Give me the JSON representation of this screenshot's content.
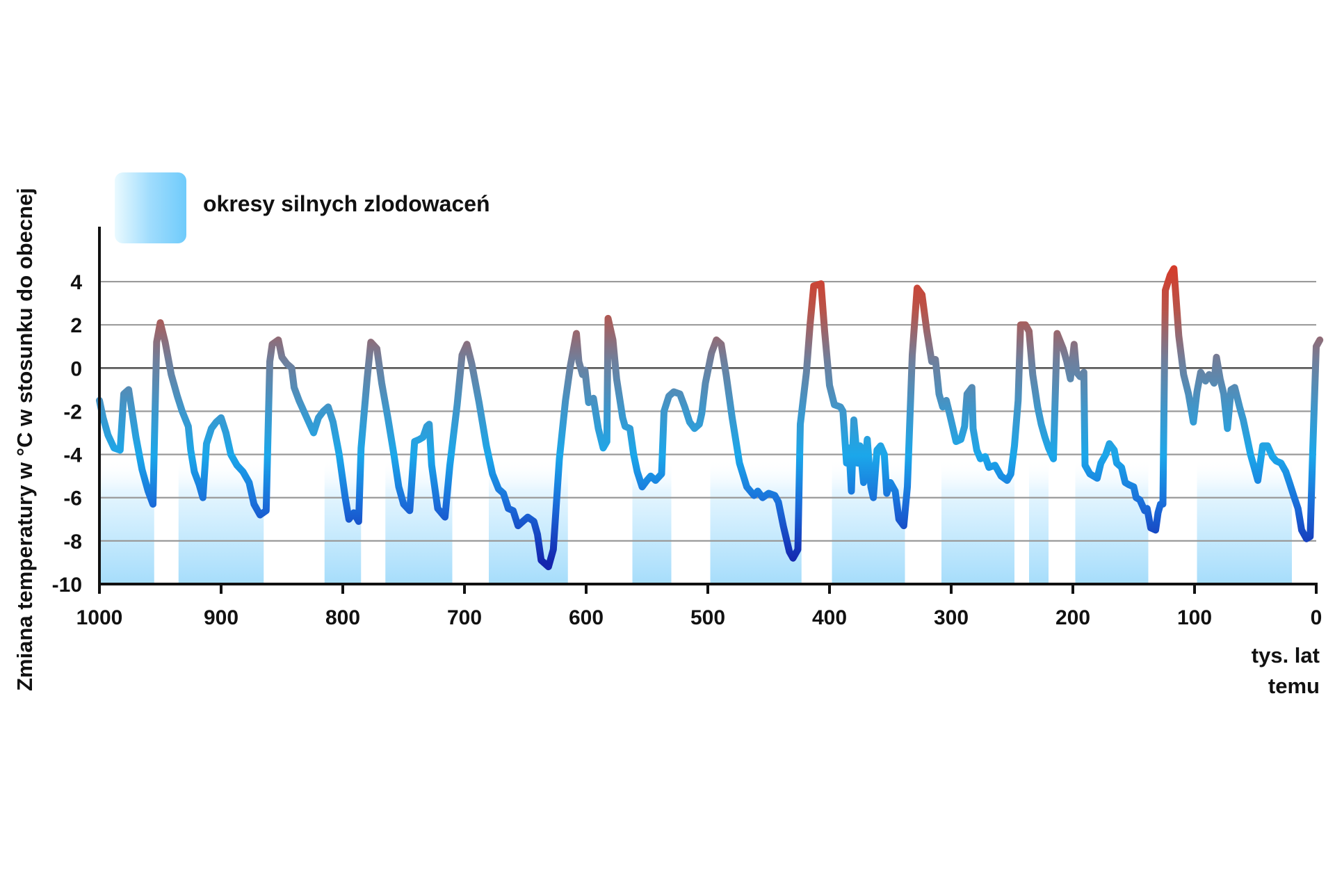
{
  "chart_data": {
    "type": "line",
    "title": "",
    "xlabel": "tys. lat temu",
    "xlabel_lines": [
      "tys. lat",
      "temu"
    ],
    "ylabel": "Zmiana temperatury w °C w stosunku do obecnej",
    "x_reversed": true,
    "xlim": [
      1000,
      0
    ],
    "ylim": [
      -10,
      5
    ],
    "x_ticks": [
      1000,
      900,
      800,
      700,
      600,
      500,
      400,
      300,
      200,
      100,
      0
    ],
    "y_ticks": [
      4,
      2,
      0,
      -2,
      -4,
      -6,
      -8,
      -10
    ],
    "grid": "horizontal",
    "legend": [
      {
        "label": "okresy silnych zlodowaceń",
        "swatch": "glaciation-band",
        "position": "top-left"
      }
    ],
    "glacial_periods": [
      [
        1000,
        955
      ],
      [
        935,
        865
      ],
      [
        815,
        785
      ],
      [
        765,
        710
      ],
      [
        680,
        615
      ],
      [
        562,
        530
      ],
      [
        498,
        423
      ],
      [
        398,
        338
      ],
      [
        308,
        248
      ],
      [
        236,
        220
      ],
      [
        198,
        138
      ],
      [
        98,
        20
      ]
    ],
    "series": [
      {
        "points": [
          [
            1000,
            -1.5
          ],
          [
            997,
            -2.3
          ],
          [
            993,
            -3.1
          ],
          [
            988,
            -3.7
          ],
          [
            983,
            -3.8
          ],
          [
            980,
            -1.2
          ],
          [
            976,
            -1.0
          ],
          [
            970,
            -3.2
          ],
          [
            965,
            -4.7
          ],
          [
            960,
            -5.7
          ],
          [
            956,
            -6.3
          ],
          [
            953,
            1.2
          ],
          [
            950,
            2.1
          ],
          [
            946,
            1.2
          ],
          [
            941,
            -0.3
          ],
          [
            936,
            -1.3
          ],
          [
            932,
            -2.0
          ],
          [
            927,
            -2.7
          ],
          [
            925,
            -3.8
          ],
          [
            922,
            -4.8
          ],
          [
            918,
            -5.4
          ],
          [
            915,
            -6.0
          ],
          [
            912,
            -3.5
          ],
          [
            908,
            -2.8
          ],
          [
            904,
            -2.5
          ],
          [
            900,
            -2.3
          ],
          [
            896,
            -3.0
          ],
          [
            892,
            -4.0
          ],
          [
            887,
            -4.5
          ],
          [
            882,
            -4.8
          ],
          [
            877,
            -5.3
          ],
          [
            873,
            -6.3
          ],
          [
            868,
            -6.8
          ],
          [
            863,
            -6.6
          ],
          [
            860,
            0.3
          ],
          [
            858,
            1.1
          ],
          [
            853,
            1.3
          ],
          [
            850,
            0.5
          ],
          [
            846,
            0.2
          ],
          [
            842,
            0.0
          ],
          [
            840,
            -0.9
          ],
          [
            836,
            -1.5
          ],
          [
            832,
            -2.0
          ],
          [
            828,
            -2.5
          ],
          [
            824,
            -3.0
          ],
          [
            820,
            -2.3
          ],
          [
            816,
            -2.0
          ],
          [
            812,
            -1.8
          ],
          [
            808,
            -2.5
          ],
          [
            803,
            -4.0
          ],
          [
            798,
            -6.0
          ],
          [
            795,
            -7.0
          ],
          [
            791,
            -6.7
          ],
          [
            787,
            -7.1
          ],
          [
            785,
            -3.7
          ],
          [
            780,
            -0.5
          ],
          [
            777,
            1.2
          ],
          [
            772,
            0.9
          ],
          [
            768,
            -0.7
          ],
          [
            763,
            -2.3
          ],
          [
            758,
            -4.0
          ],
          [
            754,
            -5.5
          ],
          [
            750,
            -6.3
          ],
          [
            745,
            -6.6
          ],
          [
            741,
            -3.4
          ],
          [
            737,
            -3.3
          ],
          [
            734,
            -3.2
          ],
          [
            731,
            -2.7
          ],
          [
            729,
            -2.6
          ],
          [
            727,
            -4.5
          ],
          [
            722,
            -6.5
          ],
          [
            716,
            -6.9
          ],
          [
            712,
            -4.5
          ],
          [
            706,
            -1.7
          ],
          [
            702,
            0.6
          ],
          [
            698,
            1.1
          ],
          [
            694,
            0.2
          ],
          [
            688,
            -1.6
          ],
          [
            682,
            -3.6
          ],
          [
            677,
            -4.9
          ],
          [
            672,
            -5.6
          ],
          [
            668,
            -5.8
          ],
          [
            664,
            -6.5
          ],
          [
            660,
            -6.6
          ],
          [
            656,
            -7.3
          ],
          [
            652,
            -7.1
          ],
          [
            648,
            -6.9
          ],
          [
            643,
            -7.1
          ],
          [
            640,
            -7.7
          ],
          [
            637,
            -8.9
          ],
          [
            631,
            -9.2
          ],
          [
            627,
            -8.4
          ],
          [
            622,
            -4.2
          ],
          [
            617,
            -1.5
          ],
          [
            613,
            0.1
          ],
          [
            608,
            1.6
          ],
          [
            606,
            0.3
          ],
          [
            603,
            -0.3
          ],
          [
            601,
            -0.1
          ],
          [
            598,
            -1.6
          ],
          [
            594,
            -1.4
          ],
          [
            590,
            -2.8
          ],
          [
            586,
            -3.7
          ],
          [
            583,
            -3.4
          ],
          [
            582,
            2.3
          ],
          [
            578,
            1.3
          ],
          [
            575,
            -0.5
          ],
          [
            570,
            -2.3
          ],
          [
            568,
            -2.7
          ],
          [
            564,
            -2.8
          ],
          [
            561,
            -4.0
          ],
          [
            558,
            -4.8
          ],
          [
            554,
            -5.5
          ],
          [
            550,
            -5.2
          ],
          [
            547,
            -5.0
          ],
          [
            543,
            -5.2
          ],
          [
            538,
            -4.9
          ],
          [
            536,
            -2.0
          ],
          [
            532,
            -1.3
          ],
          [
            528,
            -1.1
          ],
          [
            523,
            -1.2
          ],
          [
            519,
            -1.8
          ],
          [
            515,
            -2.5
          ],
          [
            511,
            -2.8
          ],
          [
            507,
            -2.6
          ],
          [
            505,
            -2.1
          ],
          [
            502,
            -0.7
          ],
          [
            497,
            0.7
          ],
          [
            493,
            1.3
          ],
          [
            489,
            1.1
          ],
          [
            485,
            -0.3
          ],
          [
            480,
            -2.3
          ],
          [
            474,
            -4.4
          ],
          [
            468,
            -5.5
          ],
          [
            462,
            -5.9
          ],
          [
            459,
            -5.7
          ],
          [
            455,
            -6.0
          ],
          [
            450,
            -5.8
          ],
          [
            445,
            -5.9
          ],
          [
            442,
            -6.2
          ],
          [
            438,
            -7.3
          ],
          [
            433,
            -8.5
          ],
          [
            430,
            -8.8
          ],
          [
            426,
            -8.4
          ],
          [
            424,
            -2.6
          ],
          [
            419,
            -0.2
          ],
          [
            416,
            2.0
          ],
          [
            413,
            3.8
          ],
          [
            407,
            3.9
          ],
          [
            404,
            1.7
          ],
          [
            400,
            -0.8
          ],
          [
            396,
            -1.7
          ],
          [
            391,
            -1.8
          ],
          [
            389,
            -2.0
          ],
          [
            386,
            -4.4
          ],
          [
            384,
            -3.7
          ],
          [
            382,
            -5.7
          ],
          [
            380,
            -2.4
          ],
          [
            377,
            -4.4
          ],
          [
            375,
            -3.6
          ],
          [
            372,
            -5.3
          ],
          [
            369,
            -3.3
          ],
          [
            366,
            -5.5
          ],
          [
            364,
            -6.0
          ],
          [
            361,
            -3.8
          ],
          [
            358,
            -3.6
          ],
          [
            355,
            -4.0
          ],
          [
            353,
            -5.8
          ],
          [
            350,
            -5.3
          ],
          [
            346,
            -5.7
          ],
          [
            343,
            -7.0
          ],
          [
            339,
            -7.3
          ],
          [
            336,
            -5.5
          ],
          [
            332,
            0.6
          ],
          [
            328,
            3.7
          ],
          [
            324,
            3.4
          ],
          [
            320,
            1.7
          ],
          [
            316,
            0.3
          ],
          [
            313,
            0.4
          ],
          [
            310,
            -1.2
          ],
          [
            307,
            -1.8
          ],
          [
            304,
            -1.5
          ],
          [
            301,
            -2.2
          ],
          [
            296,
            -3.4
          ],
          [
            292,
            -3.3
          ],
          [
            289,
            -2.7
          ],
          [
            287,
            -1.2
          ],
          [
            283,
            -0.9
          ],
          [
            282,
            -2.8
          ],
          [
            279,
            -3.8
          ],
          [
            276,
            -4.2
          ],
          [
            272,
            -4.1
          ],
          [
            269,
            -4.6
          ],
          [
            264,
            -4.5
          ],
          [
            259,
            -5.0
          ],
          [
            254,
            -5.2
          ],
          [
            251,
            -4.9
          ],
          [
            248,
            -3.6
          ],
          [
            245,
            -1.5
          ],
          [
            243,
            2.0
          ],
          [
            239,
            2.0
          ],
          [
            236,
            1.7
          ],
          [
            233,
            -0.3
          ],
          [
            229,
            -1.8
          ],
          [
            226,
            -2.6
          ],
          [
            223,
            -3.2
          ],
          [
            220,
            -3.7
          ],
          [
            216,
            -4.2
          ],
          [
            213,
            1.6
          ],
          [
            208,
            0.9
          ],
          [
            205,
            0.3
          ],
          [
            202,
            -0.5
          ],
          [
            199,
            1.1
          ],
          [
            197,
            -0.2
          ],
          [
            194,
            -0.4
          ],
          [
            191,
            -0.2
          ],
          [
            190,
            -4.5
          ],
          [
            186,
            -4.9
          ],
          [
            180,
            -5.1
          ],
          [
            177,
            -4.4
          ],
          [
            173,
            -4.0
          ],
          [
            170,
            -3.5
          ],
          [
            166,
            -3.8
          ],
          [
            164,
            -4.4
          ],
          [
            160,
            -4.6
          ],
          [
            157,
            -5.3
          ],
          [
            154,
            -5.4
          ],
          [
            150,
            -5.5
          ],
          [
            148,
            -6.0
          ],
          [
            145,
            -6.1
          ],
          [
            141,
            -6.6
          ],
          [
            139,
            -6.5
          ],
          [
            136,
            -7.4
          ],
          [
            132,
            -7.5
          ],
          [
            130,
            -6.7
          ],
          [
            128,
            -6.3
          ],
          [
            126,
            -6.3
          ],
          [
            124,
            3.6
          ],
          [
            120,
            4.3
          ],
          [
            117,
            4.6
          ],
          [
            113,
            1.5
          ],
          [
            109,
            -0.3
          ],
          [
            105,
            -1.2
          ],
          [
            101,
            -2.5
          ],
          [
            98,
            -1.1
          ],
          [
            95,
            -0.2
          ],
          [
            91,
            -0.6
          ],
          [
            88,
            -0.3
          ],
          [
            84,
            -0.7
          ],
          [
            82,
            0.5
          ],
          [
            79,
            -0.5
          ],
          [
            76,
            -1.2
          ],
          [
            73,
            -2.8
          ],
          [
            70,
            -1.0
          ],
          [
            67,
            -0.9
          ],
          [
            63,
            -1.8
          ],
          [
            60,
            -2.4
          ],
          [
            57,
            -3.2
          ],
          [
            54,
            -4.0
          ],
          [
            51,
            -4.6
          ],
          [
            48,
            -5.2
          ],
          [
            44,
            -3.6
          ],
          [
            40,
            -3.6
          ],
          [
            36,
            -4.1
          ],
          [
            33,
            -4.3
          ],
          [
            29,
            -4.4
          ],
          [
            25,
            -4.8
          ],
          [
            22,
            -5.3
          ],
          [
            18,
            -6.0
          ],
          [
            15,
            -6.5
          ],
          [
            12,
            -7.5
          ],
          [
            8,
            -7.9
          ],
          [
            5,
            -7.8
          ],
          [
            3,
            -4.0
          ],
          [
            0,
            1.0
          ],
          [
            -3,
            1.3
          ]
        ]
      }
    ]
  },
  "colors": {
    "line_warm": "#e2301c",
    "line_mid": "#6f7f9c",
    "line_cool": "#1ba7ea",
    "line_cold": "#1424ad",
    "band": "#7fd0fb",
    "grid": "#9a9a9a",
    "zero_line": "#555555",
    "axis": "#111111"
  }
}
